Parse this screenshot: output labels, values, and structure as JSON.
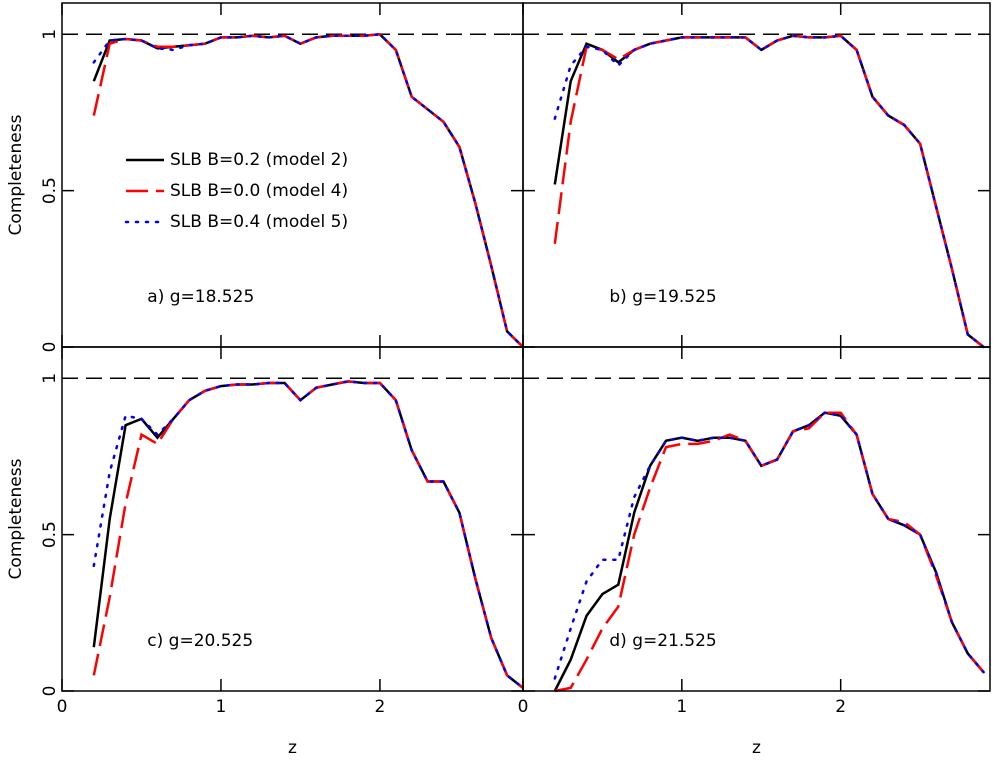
{
  "chart_data": [
    {
      "type": "line",
      "annotation": "a) g=18.525",
      "ylabel": "Completeness",
      "legend": "upper left",
      "reference_line": 1,
      "xlim": [
        0,
        2.9
      ],
      "ylim": [
        0,
        1.1
      ],
      "xticks": [
        0,
        1,
        2
      ],
      "yticks": [
        0,
        0.5,
        1
      ],
      "x": [
        0.2,
        0.3,
        0.4,
        0.5,
        0.6,
        0.7,
        0.8,
        0.9,
        1.0,
        1.1,
        1.2,
        1.3,
        1.4,
        1.5,
        1.6,
        1.7,
        1.8,
        1.9,
        2.0,
        2.1,
        2.2,
        2.3,
        2.4,
        2.5,
        2.6,
        2.7,
        2.8,
        2.9
      ],
      "series": [
        {
          "name": "SLB B=0.2 (model 2)",
          "color": "#000000",
          "style": "solid",
          "values": [
            0.85,
            0.98,
            0.985,
            0.98,
            0.955,
            0.96,
            0.965,
            0.97,
            0.99,
            0.99,
            0.995,
            0.99,
            0.995,
            0.97,
            0.99,
            0.995,
            0.995,
            0.995,
            1.0,
            0.95,
            0.8,
            0.76,
            0.72,
            0.64,
            0.46,
            0.26,
            0.05,
            0.0
          ]
        },
        {
          "name": "SLB B=0.0 (model 4)",
          "color": "#ff0000",
          "style": "dashed",
          "values": [
            0.74,
            0.97,
            0.985,
            0.98,
            0.96,
            0.96,
            0.965,
            0.97,
            0.99,
            0.99,
            0.995,
            0.99,
            0.995,
            0.97,
            0.99,
            0.995,
            0.995,
            0.995,
            1.0,
            0.95,
            0.8,
            0.76,
            0.72,
            0.64,
            0.46,
            0.26,
            0.05,
            0.0
          ]
        },
        {
          "name": "SLB B=0.4 (model 5)",
          "color": "#0000ff",
          "style": "dotted",
          "values": [
            0.91,
            0.98,
            0.985,
            0.98,
            0.955,
            0.95,
            0.965,
            0.97,
            0.99,
            0.99,
            0.995,
            0.99,
            0.995,
            0.97,
            0.99,
            0.995,
            0.995,
            0.995,
            1.0,
            0.95,
            0.8,
            0.76,
            0.72,
            0.64,
            0.46,
            0.26,
            0.05,
            0.0
          ]
        }
      ]
    },
    {
      "type": "line",
      "annotation": "b) g=19.525",
      "reference_line": 1,
      "xlim": [
        0,
        2.94
      ],
      "ylim": [
        0,
        1.1
      ],
      "xticks": [
        0,
        1,
        2
      ],
      "yticks": [
        0,
        0.5,
        1
      ],
      "x": [
        0.2,
        0.3,
        0.4,
        0.5,
        0.6,
        0.7,
        0.8,
        0.9,
        1.0,
        1.1,
        1.2,
        1.3,
        1.4,
        1.5,
        1.6,
        1.7,
        1.8,
        1.9,
        2.0,
        2.1,
        2.2,
        2.3,
        2.4,
        2.5,
        2.6,
        2.7,
        2.8,
        2.9
      ],
      "series": [
        {
          "name": "SLB B=0.2 (model 2)",
          "color": "#000000",
          "style": "solid",
          "values": [
            0.52,
            0.85,
            0.97,
            0.95,
            0.91,
            0.95,
            0.97,
            0.98,
            0.99,
            0.99,
            0.99,
            0.99,
            0.99,
            0.95,
            0.98,
            0.995,
            0.99,
            0.99,
            0.995,
            0.95,
            0.8,
            0.74,
            0.71,
            0.65,
            0.45,
            0.25,
            0.04,
            0.0
          ]
        },
        {
          "name": "SLB B=0.0 (model 4)",
          "color": "#ff0000",
          "style": "dashed",
          "values": [
            0.33,
            0.72,
            0.96,
            0.95,
            0.92,
            0.95,
            0.97,
            0.98,
            0.99,
            0.99,
            0.99,
            0.99,
            0.99,
            0.95,
            0.98,
            0.995,
            0.99,
            0.99,
            0.995,
            0.95,
            0.8,
            0.74,
            0.71,
            0.65,
            0.45,
            0.25,
            0.04,
            0.0
          ]
        },
        {
          "name": "SLB B=0.4 (model 5)",
          "color": "#0000ff",
          "style": "dotted",
          "values": [
            0.73,
            0.9,
            0.96,
            0.95,
            0.9,
            0.95,
            0.97,
            0.98,
            0.99,
            0.99,
            0.99,
            0.99,
            0.99,
            0.95,
            0.98,
            0.995,
            0.99,
            0.99,
            0.995,
            0.95,
            0.8,
            0.74,
            0.71,
            0.65,
            0.45,
            0.25,
            0.04,
            0.0
          ]
        }
      ]
    },
    {
      "type": "line",
      "annotation": "c) g=20.525",
      "ylabel": "Completeness",
      "xlabel": "z",
      "reference_line": 1,
      "xlim": [
        0,
        2.9
      ],
      "ylim": [
        0,
        1.1
      ],
      "xticks": [
        0,
        1,
        2
      ],
      "yticks": [
        0,
        0.5,
        1
      ],
      "x": [
        0.2,
        0.3,
        0.4,
        0.5,
        0.6,
        0.7,
        0.8,
        0.9,
        1.0,
        1.1,
        1.2,
        1.3,
        1.4,
        1.5,
        1.6,
        1.7,
        1.8,
        1.9,
        2.0,
        2.1,
        2.2,
        2.3,
        2.4,
        2.5,
        2.6,
        2.7,
        2.8,
        2.9
      ],
      "series": [
        {
          "name": "SLB B=0.2 (model 2)",
          "color": "#000000",
          "style": "solid",
          "values": [
            0.14,
            0.55,
            0.85,
            0.87,
            0.81,
            0.87,
            0.93,
            0.96,
            0.975,
            0.98,
            0.98,
            0.985,
            0.985,
            0.93,
            0.97,
            0.98,
            0.99,
            0.985,
            0.985,
            0.93,
            0.77,
            0.67,
            0.67,
            0.57,
            0.36,
            0.17,
            0.05,
            0.01
          ]
        },
        {
          "name": "SLB B=0.0 (model 4)",
          "color": "#ff0000",
          "style": "dashed",
          "values": [
            0.05,
            0.3,
            0.6,
            0.82,
            0.79,
            0.87,
            0.93,
            0.96,
            0.975,
            0.98,
            0.98,
            0.985,
            0.985,
            0.93,
            0.97,
            0.98,
            0.99,
            0.985,
            0.985,
            0.93,
            0.77,
            0.67,
            0.67,
            0.57,
            0.36,
            0.17,
            0.05,
            0.01
          ]
        },
        {
          "name": "SLB B=0.4 (model 5)",
          "color": "#0000ff",
          "style": "dotted",
          "values": [
            0.4,
            0.7,
            0.88,
            0.87,
            0.82,
            0.87,
            0.93,
            0.96,
            0.975,
            0.98,
            0.98,
            0.985,
            0.985,
            0.93,
            0.97,
            0.98,
            0.99,
            0.985,
            0.985,
            0.93,
            0.77,
            0.67,
            0.67,
            0.57,
            0.36,
            0.17,
            0.05,
            0.01
          ]
        }
      ]
    },
    {
      "type": "line",
      "annotation": "d) g=21.525",
      "xlabel": "z",
      "reference_line": 1,
      "xlim": [
        0,
        2.94
      ],
      "ylim": [
        0,
        1.1
      ],
      "xticks": [
        0,
        1,
        2
      ],
      "yticks": [
        0,
        0.5,
        1
      ],
      "x": [
        0.2,
        0.3,
        0.4,
        0.5,
        0.6,
        0.7,
        0.8,
        0.9,
        1.0,
        1.1,
        1.2,
        1.3,
        1.4,
        1.5,
        1.6,
        1.7,
        1.8,
        1.9,
        2.0,
        2.1,
        2.2,
        2.3,
        2.4,
        2.5,
        2.6,
        2.7,
        2.8,
        2.9
      ],
      "series": [
        {
          "name": "SLB B=0.2 (model 2)",
          "color": "#000000",
          "style": "solid",
          "values": [
            0.0,
            0.1,
            0.24,
            0.31,
            0.34,
            0.57,
            0.72,
            0.8,
            0.81,
            0.8,
            0.81,
            0.81,
            0.8,
            0.72,
            0.74,
            0.83,
            0.85,
            0.89,
            0.88,
            0.82,
            0.63,
            0.55,
            0.53,
            0.5,
            0.38,
            0.22,
            0.12,
            0.06
          ]
        },
        {
          "name": "SLB B=0.0 (model 4)",
          "color": "#ff0000",
          "style": "dashed",
          "values": [
            0.0,
            0.01,
            0.1,
            0.2,
            0.27,
            0.5,
            0.65,
            0.78,
            0.79,
            0.79,
            0.8,
            0.82,
            0.8,
            0.72,
            0.74,
            0.83,
            0.84,
            0.89,
            0.89,
            0.82,
            0.63,
            0.55,
            0.54,
            0.5,
            0.37,
            0.22,
            0.12,
            0.06
          ]
        },
        {
          "name": "SLB B=0.4 (model 5)",
          "color": "#0000ff",
          "style": "dotted",
          "values": [
            0.04,
            0.2,
            0.35,
            0.42,
            0.42,
            0.62,
            0.72,
            0.8,
            0.81,
            0.8,
            0.81,
            0.81,
            0.8,
            0.72,
            0.74,
            0.83,
            0.85,
            0.89,
            0.88,
            0.82,
            0.63,
            0.55,
            0.53,
            0.5,
            0.38,
            0.22,
            0.12,
            0.06
          ]
        }
      ]
    }
  ]
}
